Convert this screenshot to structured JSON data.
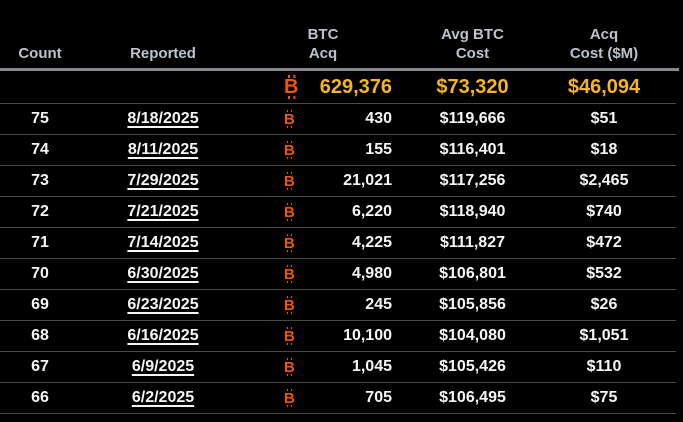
{
  "colors": {
    "background": "#000000",
    "header_text": "#b9c4cd",
    "header_rule": "#84898d",
    "row_divider": "#4a4a4a",
    "row_text": "#f6f6f6",
    "totals_text": "#f4b426",
    "btc_symbol_orange": "#ea570d"
  },
  "header": {
    "columns": [
      {
        "line1": "",
        "line2": "Count"
      },
      {
        "line1": "",
        "line2": "Reported"
      },
      {
        "line1": "BTC",
        "line2": "Acq"
      },
      {
        "line1": "Avg BTC",
        "line2": "Cost"
      },
      {
        "line1": "Acq",
        "line2": "Cost ($M)"
      }
    ]
  },
  "icons": {
    "btc_symbol": "bitcoin-icon"
  },
  "chart_data": {
    "type": "table",
    "columns": [
      "Count",
      "Reported",
      "BTC Acq",
      "Avg BTC Cost",
      "Acq Cost ($M)"
    ],
    "totals_row": {
      "btc_acq": "629,376",
      "avg_btc_cost": "$73,320",
      "acq_cost_m": "$46,094"
    },
    "rows": [
      [
        "75",
        "8/18/2025",
        "430",
        "$119,666",
        "$51"
      ],
      [
        "74",
        "8/11/2025",
        "155",
        "$116,401",
        "$18"
      ],
      [
        "73",
        "7/29/2025",
        "21,021",
        "$117,256",
        "$2,465"
      ],
      [
        "72",
        "7/21/2025",
        "6,220",
        "$118,940",
        "$740"
      ],
      [
        "71",
        "7/14/2025",
        "4,225",
        "$111,827",
        "$472"
      ],
      [
        "70",
        "6/30/2025",
        "4,980",
        "$106,801",
        "$532"
      ],
      [
        "69",
        "6/23/2025",
        "245",
        "$105,856",
        "$26"
      ],
      [
        "68",
        "6/16/2025",
        "10,100",
        "$104,080",
        "$1,051"
      ],
      [
        "67",
        "6/9/2025",
        "1,045",
        "$105,426",
        "$110"
      ],
      [
        "66",
        "6/2/2025",
        "705",
        "$106,495",
        "$75"
      ]
    ]
  }
}
